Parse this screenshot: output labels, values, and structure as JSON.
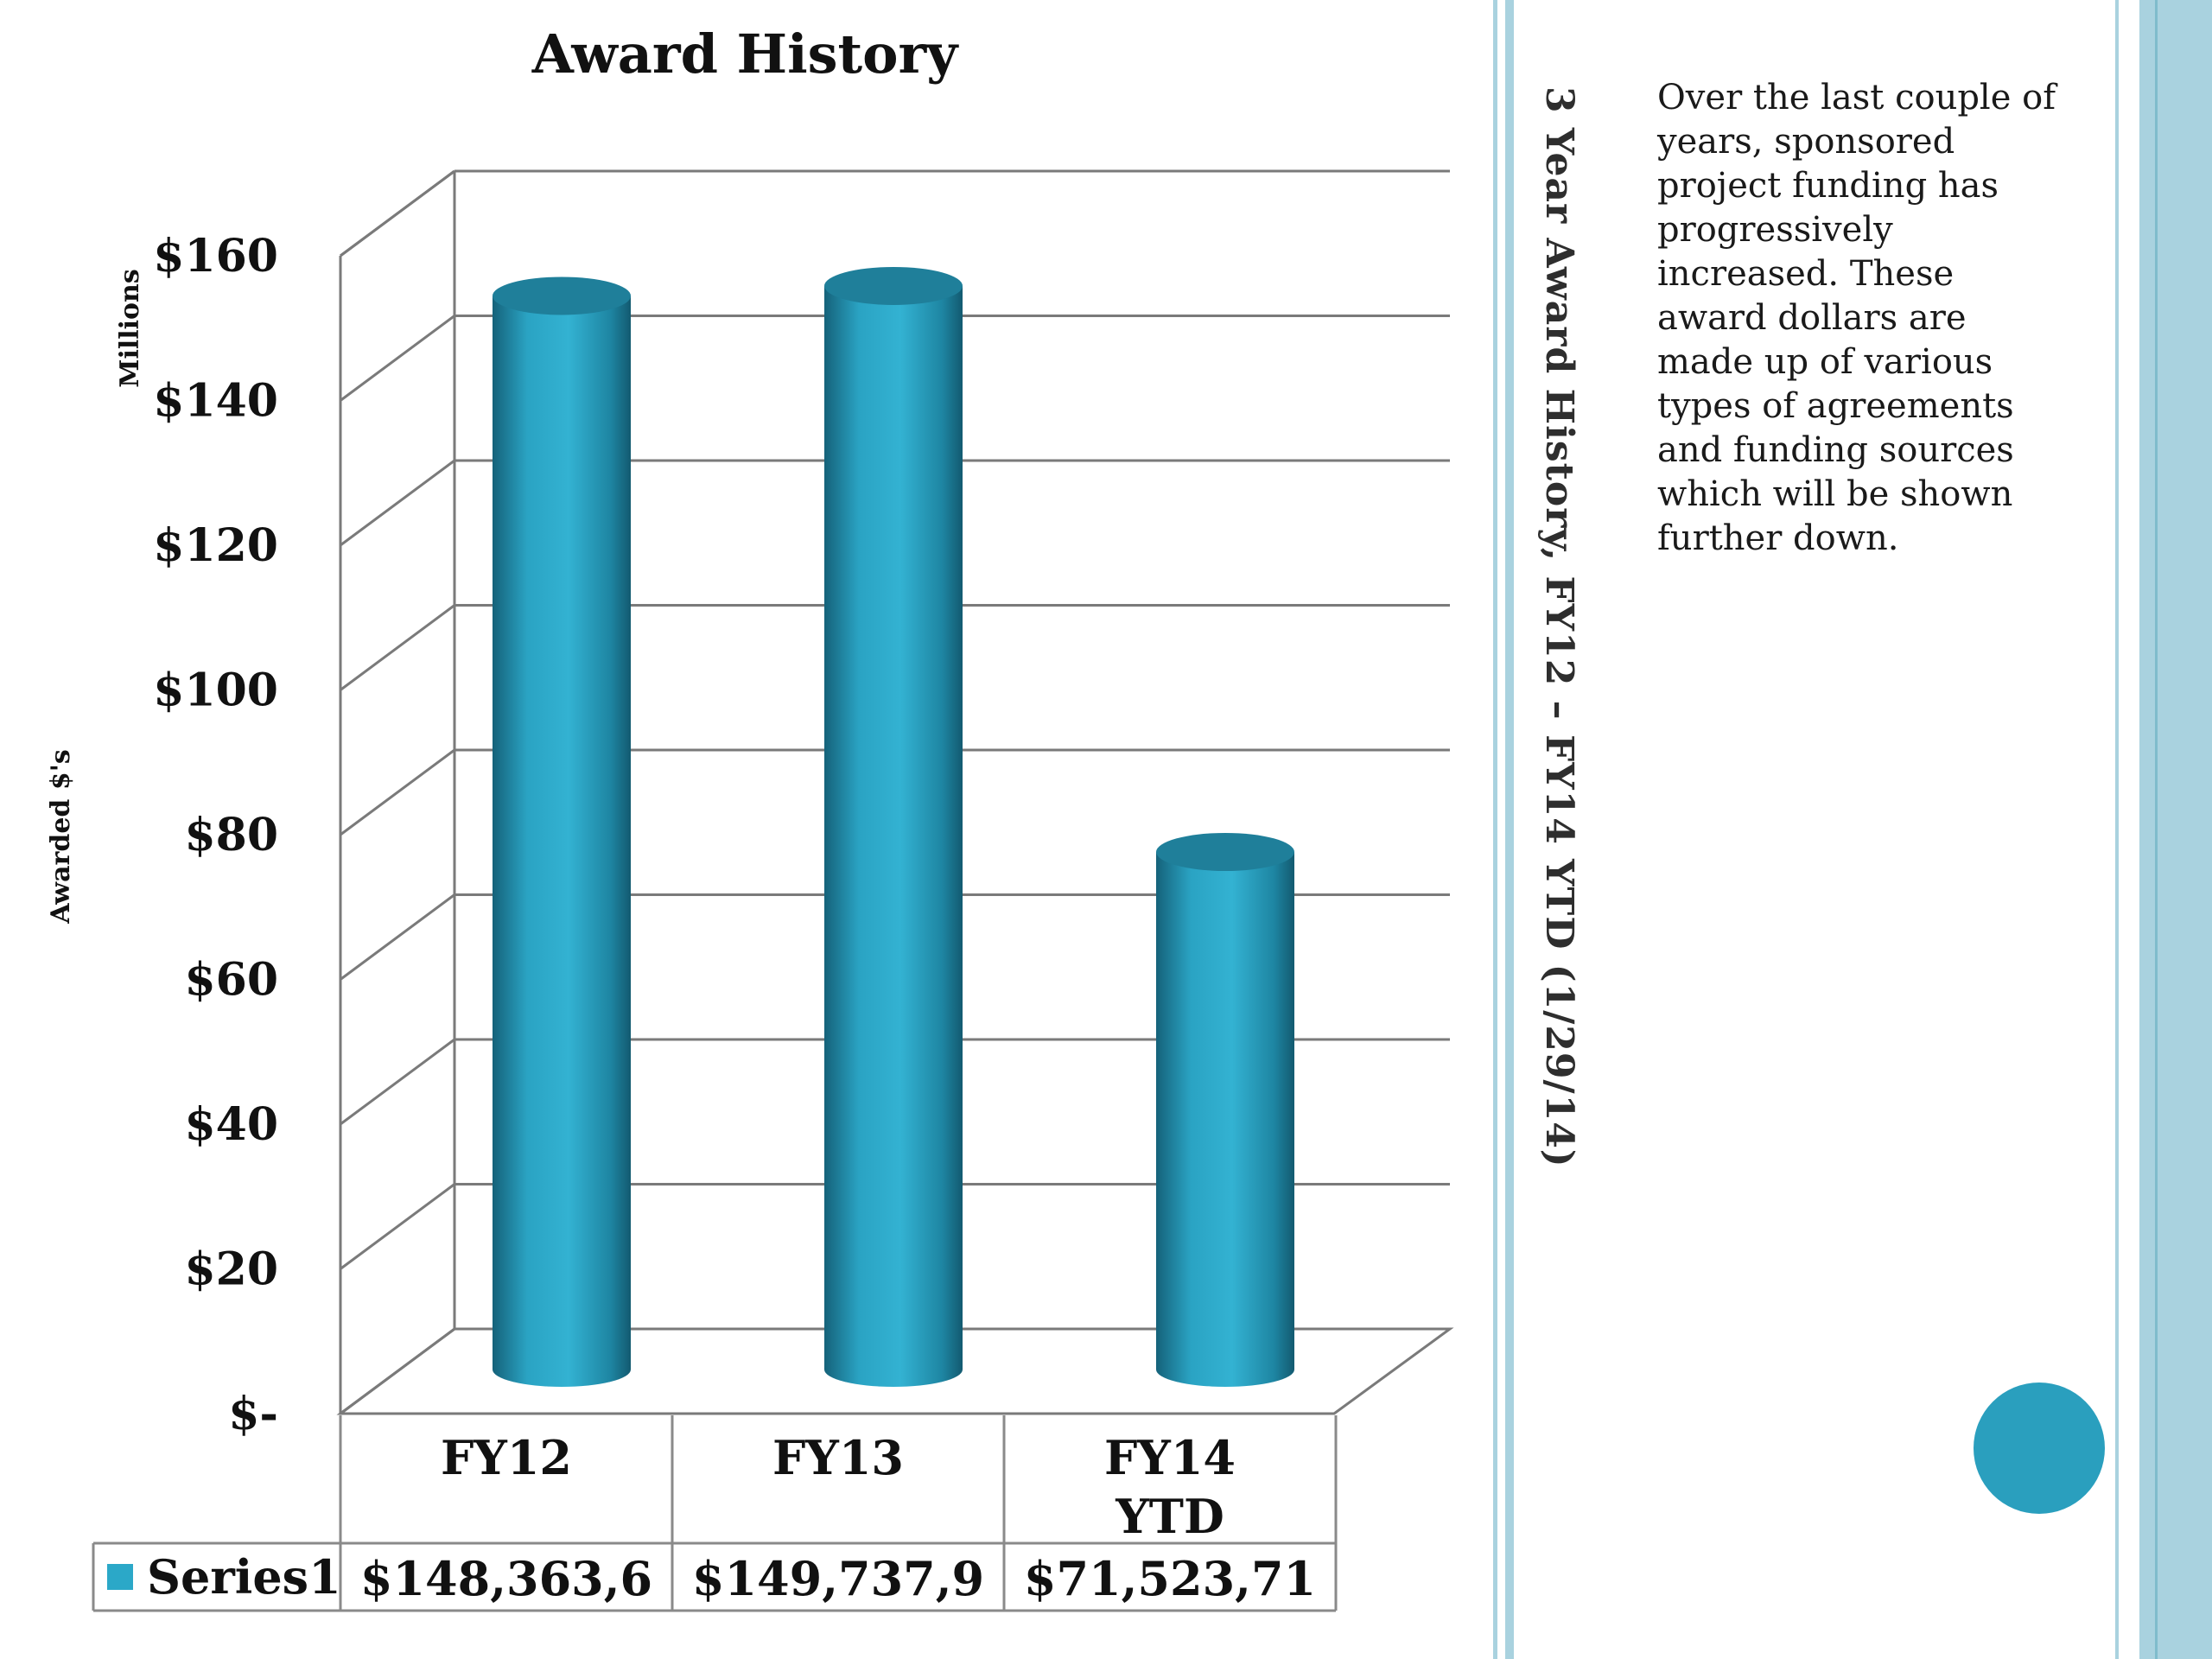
{
  "slide": {
    "side_title_main": "3 Year Award History, FY12 – FY14 YTD (1/29/14)",
    "description": "Over the last couple of years, sponsored project funding has progressively increased.  These award dollars are made up of various types of agreements and funding sources which will be shown further down.",
    "colors": {
      "accent": "#2a9fbe",
      "panel_stripe": "#a9d2df"
    }
  },
  "chart_data": {
    "type": "bar",
    "title": "Award History",
    "ylabel": "Awarded $'s",
    "yunit": "Millions",
    "categories": [
      "FY12",
      "FY13",
      "FY14 YTD"
    ],
    "series": [
      {
        "name": "Series1",
        "values": [
          148.3636,
          149.7379,
          71.52371
        ],
        "table_labels": [
          "$148,363,6",
          "$149,737,9",
          "$71,523,71"
        ],
        "color": "#2ba8c8"
      }
    ],
    "yticks": [
      "$-",
      "$20",
      "$40",
      "$60",
      "$80",
      "$100",
      "$120",
      "$140",
      "$160"
    ],
    "ylim": [
      0,
      160
    ],
    "grid": true,
    "legend": "data-table"
  }
}
